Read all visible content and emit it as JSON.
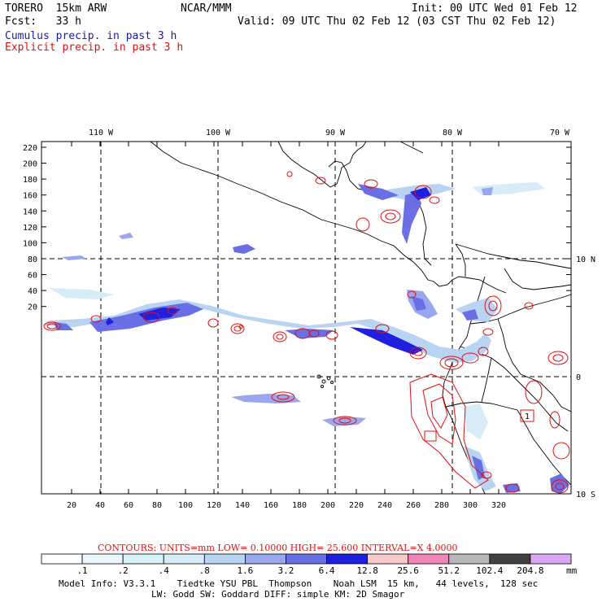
{
  "header": {
    "model": "TORERO  15km ARW",
    "center": "NCAR/MMM",
    "init": "Init: 00 UTC Wed 01 Feb 12",
    "fcst": "Fcst:   33 h",
    "valid": "Valid: 09 UTC Thu 02 Feb 12 (03 CST Thu 02 Feb 12)"
  },
  "legend": {
    "cumulus": "Cumulus precip. in past 3 h",
    "explicit": "Explicit precip. in past 3 h",
    "cumulus_color": "#1a1aa8",
    "explicit_color": "#e01010"
  },
  "axes": {
    "y_ticks": [
      "220",
      "200",
      "180",
      "160",
      "140",
      "120",
      "100",
      "80",
      "60",
      "40",
      "20"
    ],
    "x_ticks": [
      "20",
      "40",
      "60",
      "80",
      "100",
      "120",
      "140",
      "160",
      "180",
      "200",
      "220",
      "240",
      "260",
      "280",
      "300",
      "320"
    ],
    "lon_labels": [
      "110 W",
      "100 W",
      "90 W",
      "80 W",
      "70 W"
    ],
    "lat_labels": [
      "10 N",
      "0",
      "10 S"
    ],
    "box_label": "1"
  },
  "contours": {
    "text": "CONTOURS:  UNITS=mm  LOW= 0.10000     HIGH=  25.600     INTERVAL=X  4.0000"
  },
  "colorbar": {
    "labels": [
      ".1",
      ".2",
      ".4",
      ".8",
      "1.6",
      "3.2",
      "6.4",
      "12.8",
      "25.6",
      "51.2",
      "102.4",
      "204.8"
    ],
    "unit": "mm",
    "colors": [
      "#ffffff",
      "#eaf6fb",
      "#d6f1f7",
      "#d8ecf8",
      "#b9d3f3",
      "#9aa6ee",
      "#6a6fe6",
      "#1f1fe0",
      "#f7c9c9",
      "#f086b8",
      "#b8b8b8",
      "#404040",
      "#d8a6f3"
    ]
  },
  "model_info": {
    "line1": "Model Info: V3.3.1    Tiedtke YSU PBL  Thompson    Noah LSM  15 km,   44 levels,  128 sec",
    "line2": "LW: Godd SW: Goddard DIFF: simple KM: 2D Smagor"
  }
}
